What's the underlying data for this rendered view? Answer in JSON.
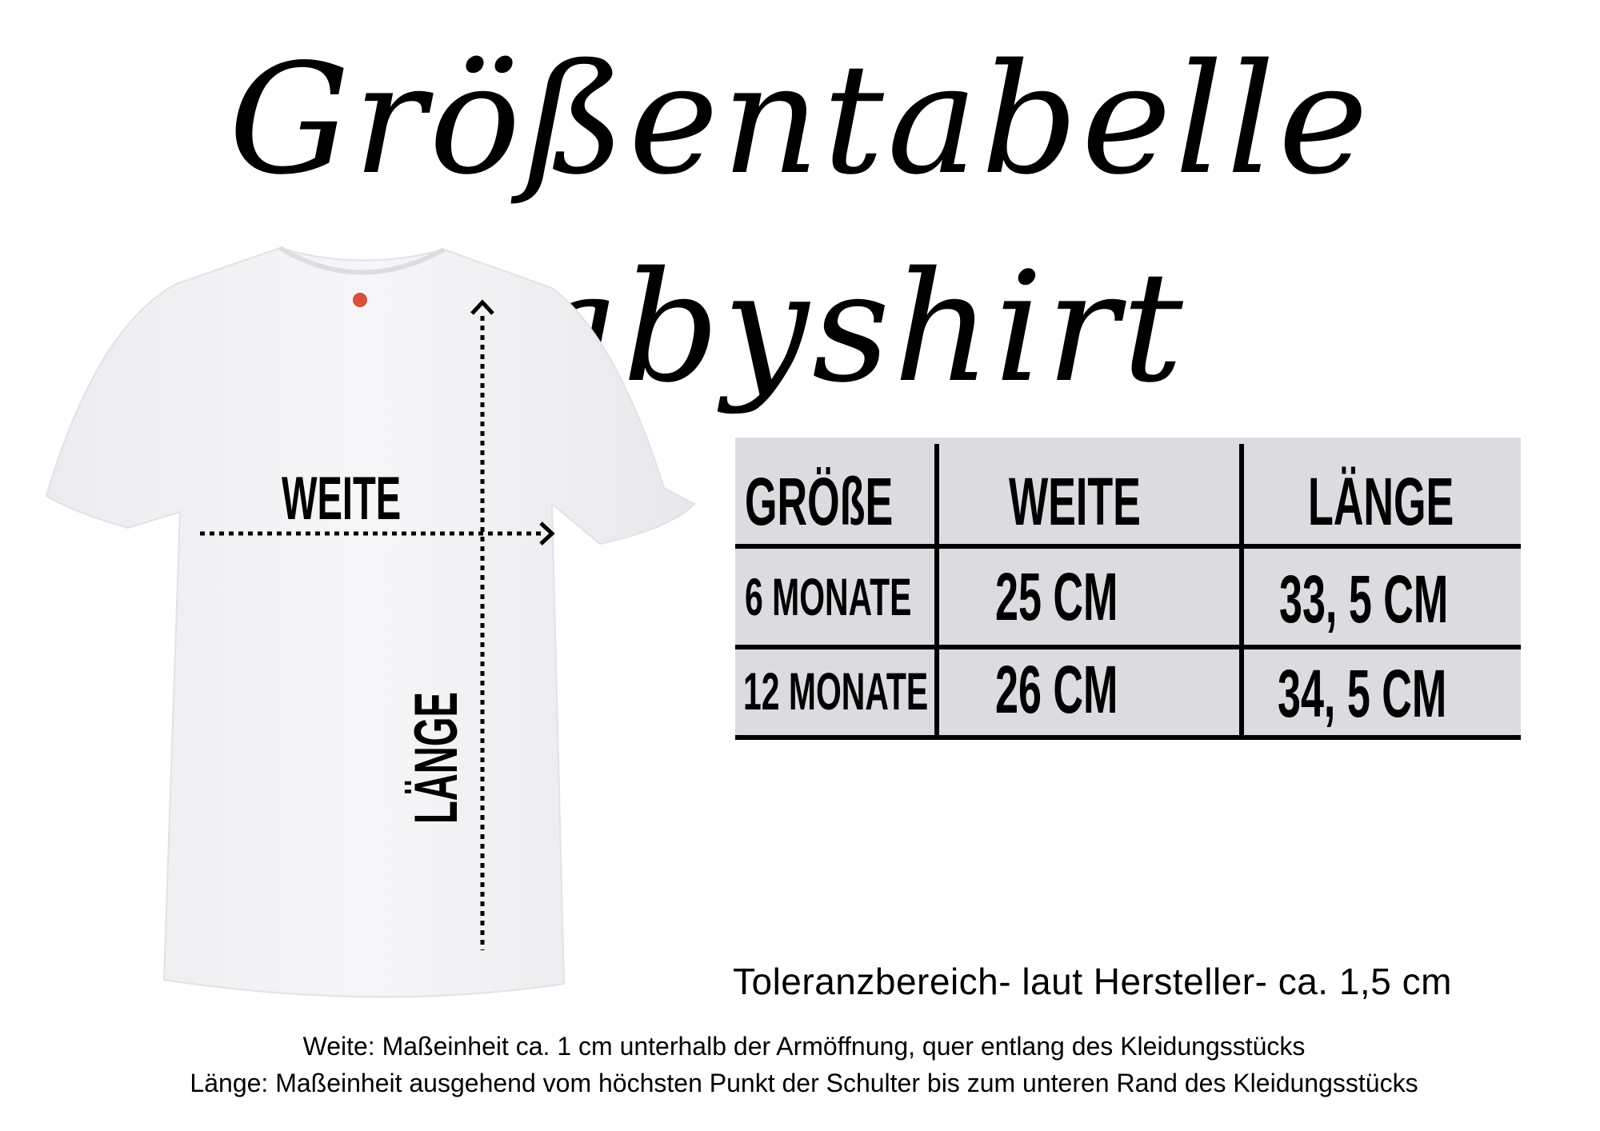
{
  "title": "Größentabelle Babyshirt",
  "diagram": {
    "weite_label": "WEITE",
    "laenge_label": "LÄNGE"
  },
  "table": {
    "headers": [
      "GRÖßE",
      "WEITE",
      "LÄNGE"
    ],
    "rows": [
      [
        "6 MONATE",
        "25 CM",
        "33, 5 CM"
      ],
      [
        "12 MONATE",
        "26 CM",
        "34, 5 CM"
      ]
    ],
    "background_color": "#dcdbe0"
  },
  "tolerance": "Toleranzbereich- laut Hersteller- ca. 1,5 cm",
  "notes": [
    "Weite: Maßeinheit ca. 1 cm unterhalb der Armöffnung, quer entlang des Kleidungsstücks",
    "Länge: Maßeinheit ausgehend vom höchsten Punkt der Schulter bis zum unteren Rand des Kleidungsstücks"
  ]
}
